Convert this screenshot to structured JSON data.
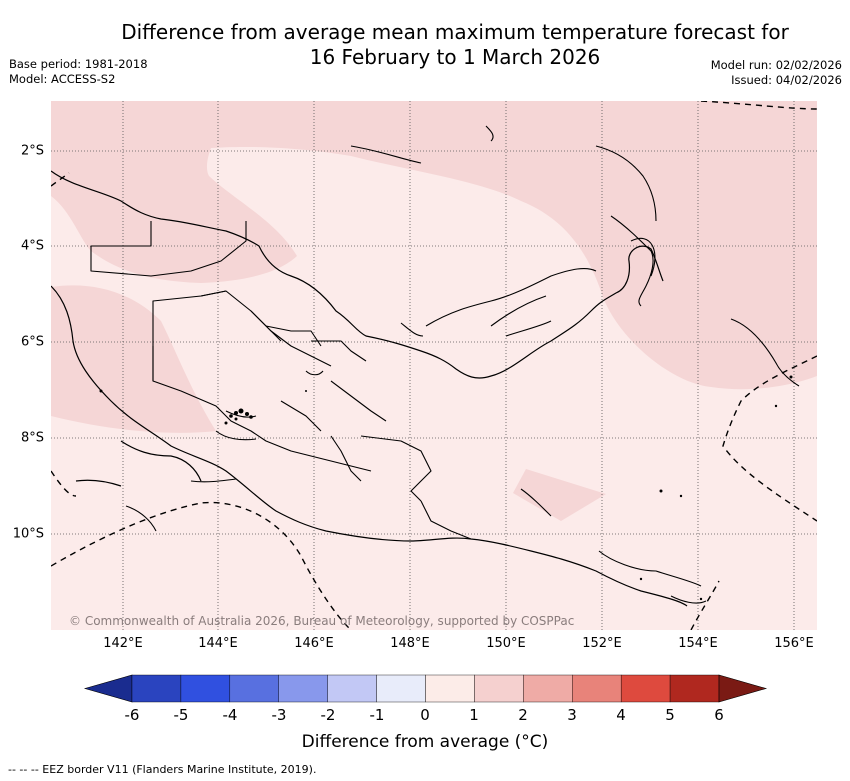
{
  "title_line1": "Difference from average mean maximum temperature forecast for",
  "title_line2": "16 February to 1 March 2026",
  "base_period": "Base period: 1981-2018",
  "model": "Model: ACCESS-S2",
  "model_run": "Model run: 02/02/2026",
  "issued": "Issued: 04/02/2026",
  "lat_labels": [
    "2°S",
    "4°S",
    "6°S",
    "8°S",
    "10°S"
  ],
  "lon_labels": [
    "142°E",
    "144°E",
    "146°E",
    "148°E",
    "150°E",
    "152°E",
    "154°E",
    "156°E"
  ],
  "copyright": "© Commonwealth of Australia 2026, Bureau of Meteorology, supported by COSPPac",
  "colorbar": {
    "ticks": [
      "-6",
      "-5",
      "-4",
      "-3",
      "-2",
      "-1",
      "0",
      "1",
      "2",
      "3",
      "4",
      "5",
      "6"
    ],
    "colors": [
      "#1a2c8f",
      "#2a44bf",
      "#3050e0",
      "#5870e0",
      "#8898ec",
      "#c2c8f5",
      "#e8ecfa",
      "#fcece8",
      "#f5d0cf",
      "#efaba6",
      "#e8837a",
      "#de4a3e",
      "#b0281f",
      "#7a1a14"
    ],
    "label": "Difference from average (°C)"
  },
  "legend_eez": "--  --  -- EEZ border V11 (Flanders Marine Institute, 2019).",
  "map_colors": {
    "light": "#fcebea",
    "medium": "#f5d6d6",
    "grid": "#555555"
  }
}
